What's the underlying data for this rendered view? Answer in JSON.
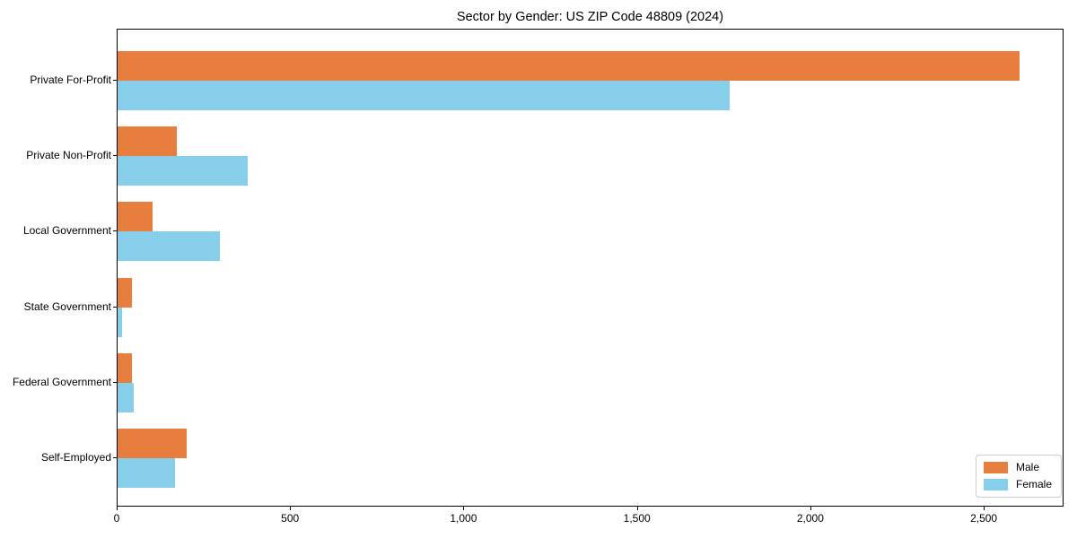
{
  "chart_data": {
    "type": "bar",
    "orientation": "horizontal",
    "title": "Sector by Gender: US ZIP Code 48809 (2024)",
    "categories": [
      "Private For-Profit",
      "Private Non-Profit",
      "Local Government",
      "State Government",
      "Federal Government",
      "Self-Employed"
    ],
    "series": [
      {
        "name": "Male",
        "color": "#e87e3e",
        "values": [
          2600,
          170,
          100,
          40,
          40,
          200
        ]
      },
      {
        "name": "Female",
        "color": "#87ceeb",
        "values": [
          1765,
          375,
          295,
          12,
          46,
          165
        ]
      }
    ],
    "xlabel": "",
    "ylabel": "",
    "xlim": [
      0,
      2730
    ],
    "xticks": [
      0,
      500,
      1000,
      1500,
      2000,
      2500
    ],
    "xtick_labels": [
      "0",
      "500",
      "1,000",
      "1,500",
      "2,000",
      "2,500"
    ],
    "grid": false,
    "legend_position": "lower right",
    "frame_color": "#000000",
    "background_color": "#ffffff"
  }
}
